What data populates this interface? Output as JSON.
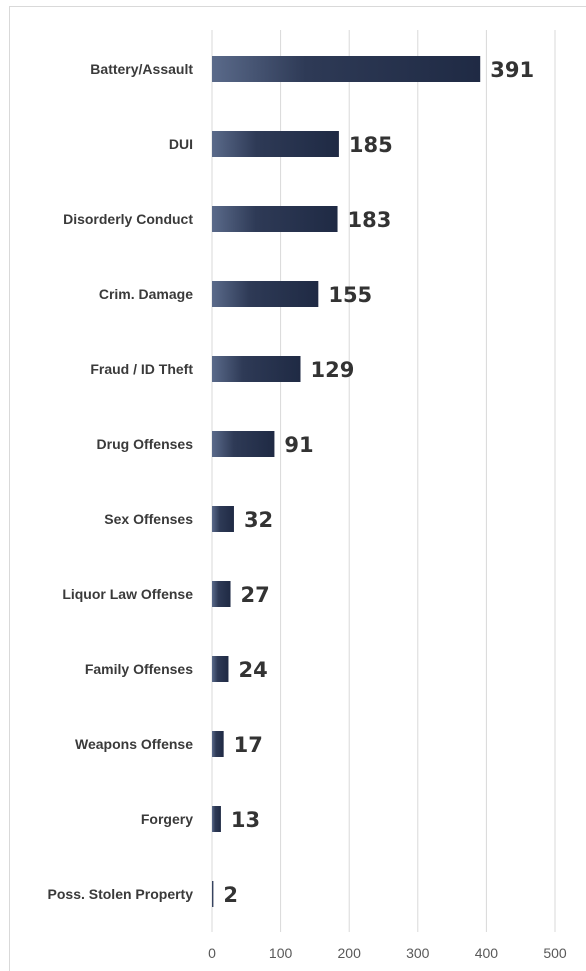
{
  "chart_data": {
    "type": "bar",
    "orientation": "horizontal",
    "title": "",
    "xlabel": "",
    "ylabel": "",
    "categories": [
      "Battery/Assault",
      "DUI",
      "Disorderly Conduct",
      "Crim. Damage",
      "Fraud / ID Theft",
      "Drug Offenses",
      "Sex Offenses",
      "Liquor Law Offense",
      "Family Offenses",
      "Weapons Offense",
      "Forgery",
      "Poss. Stolen Property"
    ],
    "values": [
      391,
      185,
      183,
      155,
      129,
      91,
      32,
      27,
      24,
      17,
      13,
      2
    ],
    "xlim": [
      0,
      500
    ],
    "xticks": [
      "0",
      "100",
      "200",
      "300",
      "400",
      "500"
    ],
    "grid": "vertical",
    "legend": "none",
    "bar_color_dark": "#1f2a44",
    "bar_color_light": "#5a6a8a"
  }
}
